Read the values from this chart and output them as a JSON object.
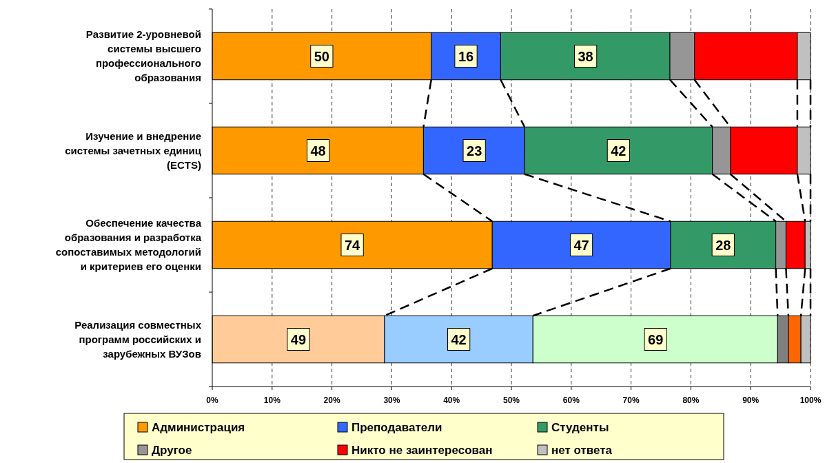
{
  "chart_data": {
    "type": "bar",
    "orientation": "horizontal",
    "stacked": true,
    "categories": [
      "Развитие 2-уровневой системы высшего профессионального образования",
      "Изучение и внедрение системы зачетных единиц (ECTS)",
      "Обеспечение качества образования и разработка сопоставимых методологий и критериев его оценки",
      "Реализация совместных программ российских и зарубежных ВУЗов"
    ],
    "series": [
      {
        "name": "Администрация",
        "color": "#ff9900",
        "colors": [
          "#ff9900",
          "#ff9900",
          "#ff9900",
          "#ffcc99"
        ],
        "values": [
          36.6,
          35.3,
          46.8,
          28.8
        ]
      },
      {
        "name": "Преподаватели",
        "color": "#3366ff",
        "colors": [
          "#3366ff",
          "#3366ff",
          "#3366ff",
          "#99ccff"
        ],
        "values": [
          11.6,
          16.9,
          29.8,
          24.8
        ]
      },
      {
        "name": "Студенты",
        "color": "#339966",
        "colors": [
          "#339966",
          "#339966",
          "#339966",
          "#ccffcc"
        ],
        "values": [
          28.3,
          31.4,
          17.6,
          40.9
        ]
      },
      {
        "name": "Другое",
        "color": "#969696",
        "colors": [
          "#969696",
          "#969696",
          "#969696",
          "#808080"
        ],
        "values": [
          4.1,
          3.0,
          1.7,
          1.8
        ]
      },
      {
        "name": "Никто не заинтересован",
        "color": "#ff0000",
        "colors": [
          "#ff0000",
          "#ff0000",
          "#ff0000",
          "#ff6600"
        ],
        "values": [
          17.2,
          11.2,
          3.2,
          2.1
        ]
      },
      {
        "name": "нет ответа",
        "color": "#c0c0c0",
        "colors": [
          "#c0c0c0",
          "#c0c0c0",
          "#c0c0c0",
          "#c0c0c0"
        ],
        "values": [
          2.2,
          2.2,
          0.9,
          1.6
        ]
      }
    ],
    "annotations": [
      {
        "text": "50",
        "x": 18.3,
        "y": "Развитие 2-уровневой системы высшего профессионального образования"
      },
      {
        "text": "16",
        "x": 42.4,
        "y": "Развитие 2-уровневой системы высшего профессионального образования"
      },
      {
        "text": "38",
        "x": 62.4,
        "y": "Развитие 2-уровневой системы высшего профессионального образования"
      },
      {
        "text": "48",
        "x": 17.7,
        "y": "Изучение и внедрение системы зачетных единиц (ECTS)"
      },
      {
        "text": "23",
        "x": 43.8,
        "y": "Изучение и внедрение системы зачетных единиц (ECTS)"
      },
      {
        "text": "42",
        "x": 67.9,
        "y": "Изучение и внедрение системы зачетных единиц (ECTS)"
      },
      {
        "text": "74",
        "x": 23.4,
        "y": "Обеспечение качества образования и разработка сопоставимых методологий и критериев его оценки"
      },
      {
        "text": "47",
        "x": 61.7,
        "y": "Обеспечение качества образования и разработка сопоставимых методологий и критериев его оценки"
      },
      {
        "text": "28",
        "x": 85.4,
        "y": "Обеспечение качества образования и разработка сопоставимых методологий и критериев его оценки"
      },
      {
        "text": "49",
        "x": 14.4,
        "y": "Реализация совместных программ российских и зарубежных ВУЗов"
      },
      {
        "text": "42",
        "x": 41.2,
        "y": "Реализация совместных программ российских и зарубежных ВУЗов"
      },
      {
        "text": "69",
        "x": 74.1,
        "y": "Реализация совместных программ российских и зарубежных ВУЗов"
      }
    ],
    "xlim": [
      0,
      100
    ],
    "xticks": [
      {
        "value": 0,
        "label": "0%"
      },
      {
        "value": 10,
        "label": "10%"
      },
      {
        "value": 20,
        "label": "20%"
      },
      {
        "value": 30,
        "label": "30%"
      },
      {
        "value": 40,
        "label": "40%"
      },
      {
        "value": 50,
        "label": "50%"
      },
      {
        "value": 60,
        "label": "60%"
      },
      {
        "value": 70,
        "label": "70%"
      },
      {
        "value": 80,
        "label": "80%"
      },
      {
        "value": 90,
        "label": "90%"
      },
      {
        "value": 100,
        "label": "100%"
      }
    ],
    "grid": "x",
    "legend": "bottom"
  }
}
